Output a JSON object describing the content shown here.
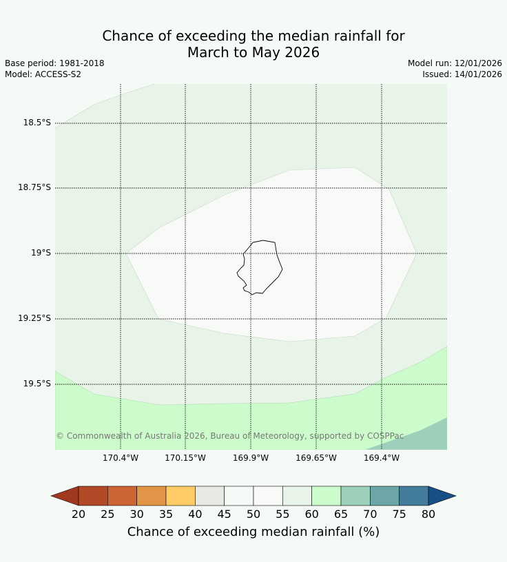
{
  "title_line1": "Chance of exceeding the median rainfall for",
  "title_line2": "March to May 2026",
  "base_period": "Base period: 1981-2018",
  "model": "Model: ACCESS-S2",
  "model_run": "Model run: 12/01/2026",
  "issued": "Issued: 14/01/2026",
  "copyright": "© Commonwealth of Australia 2026, Bureau of Meteorology, supported by COSPPac",
  "lat_labels": [
    "18.5°S",
    "18.75°S",
    "19°S",
    "19.25°S",
    "19.5°S"
  ],
  "lon_labels": [
    "170.4°W",
    "170.15°W",
    "169.9°W",
    "169.65°W",
    "169.4°W"
  ],
  "colorbar": {
    "label": "Chance of exceeding median rainfall (%)",
    "ticks": [
      "20",
      "25",
      "30",
      "35",
      "40",
      "45",
      "50",
      "55",
      "60",
      "65",
      "70",
      "75",
      "80"
    ],
    "low_color": "#a0391f",
    "high_color": "#1a4f85",
    "colors": [
      "#b24a27",
      "#cd6434",
      "#e39547",
      "#fecb66",
      "#e8e9e5",
      "#f6faf6",
      "#f8faf8",
      "#e9f4e8",
      "#ccfccb",
      "#9dd0bb",
      "#6ea5a7",
      "#447c9b"
    ]
  },
  "legend_colors": {
    "55-60": "#e9f4e8",
    "50-55": "#f8faf8",
    "60-65": "#ccfccb",
    "65-70": "#9dd0bb"
  }
}
